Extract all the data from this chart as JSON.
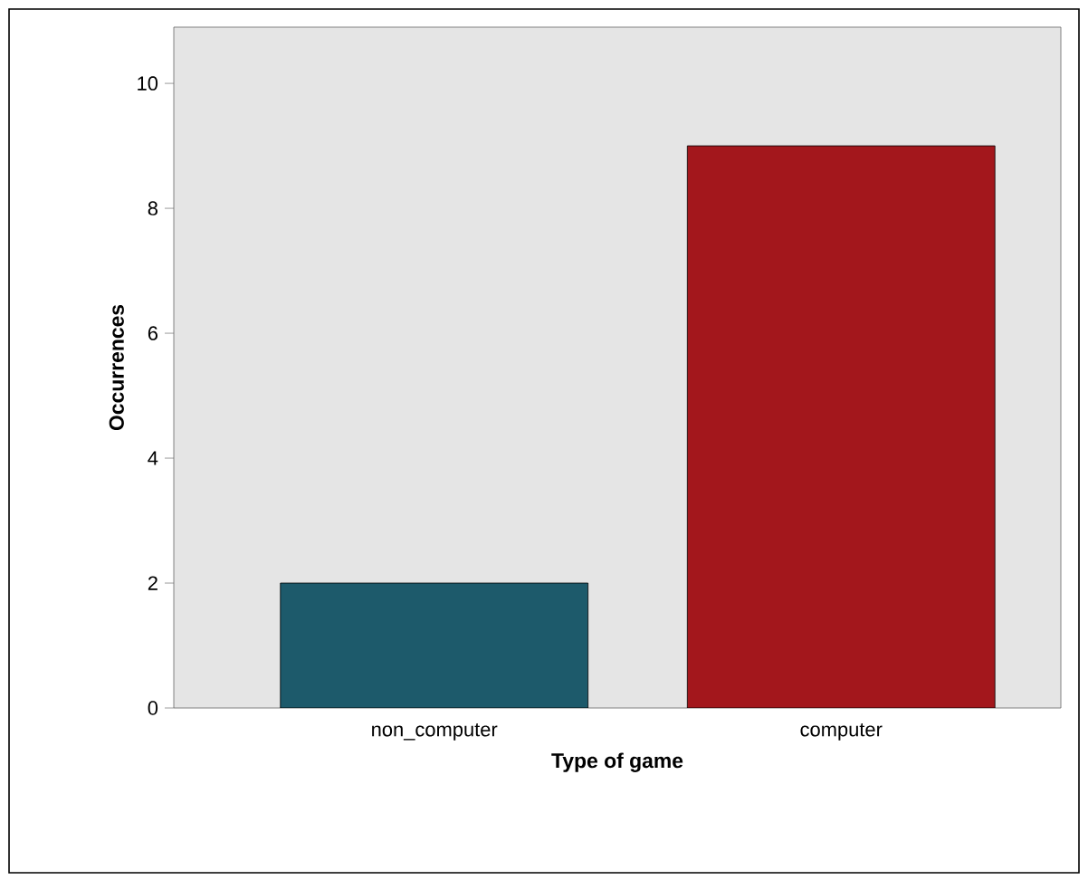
{
  "chart_data": {
    "type": "bar",
    "xlabel": "Type of game",
    "ylabel": "Occurrences",
    "categories": [
      "non_computer",
      "computer"
    ],
    "values": [
      2,
      9
    ],
    "colors": [
      "#1d5a6b",
      "#a3171c"
    ],
    "ylim": [
      0,
      10.9
    ],
    "yticks": [
      0,
      2,
      4,
      6,
      8,
      10
    ],
    "grid": false
  }
}
